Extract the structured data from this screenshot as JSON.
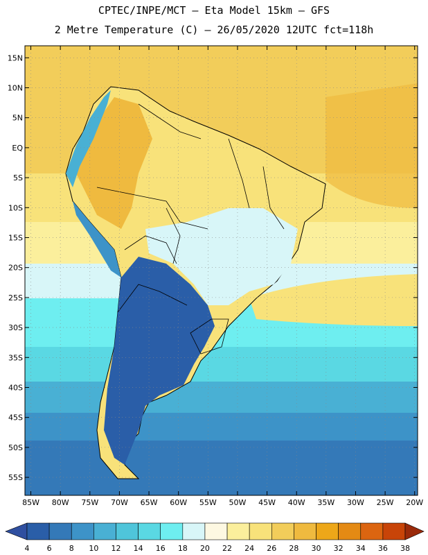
{
  "header": {
    "line1": "CPTEC/INPE/MCT –  Eta Model 15km – GFS",
    "line2": "2 Metre Temperature (C) – 26/05/2020 12UTC fct=118h"
  },
  "map": {
    "lat_labels": [
      "15N",
      "10N",
      "5N",
      "EQ",
      "5S",
      "10S",
      "15S",
      "20S",
      "25S",
      "30S",
      "35S",
      "40S",
      "45S",
      "50S",
      "55S"
    ],
    "lon_labels": [
      "85W",
      "80W",
      "75W",
      "70W",
      "65W",
      "60W",
      "55W",
      "50W",
      "45W",
      "40W",
      "35W",
      "30W",
      "25W",
      "20W"
    ],
    "extent": {
      "west": -86,
      "east": -19.5,
      "north": 17,
      "south": -58
    }
  },
  "legend": {
    "values": [
      "4",
      "6",
      "8",
      "10",
      "12",
      "14",
      "16",
      "18",
      "20",
      "22",
      "24",
      "26",
      "28",
      "30",
      "32",
      "34",
      "36",
      "38"
    ],
    "colors": [
      "#2a5ea8",
      "#3479b8",
      "#3d93c8",
      "#49b0d4",
      "#4fc5da",
      "#5ad8e3",
      "#6eeef0",
      "#d8f6f8",
      "#fdf8e2",
      "#fbef9c",
      "#f8e27a",
      "#f2cd5a",
      "#efba3f",
      "#eda719",
      "#e48a14",
      "#dc6510",
      "#c84408",
      "#a8300a"
    ],
    "under_color": "#2f4fa0",
    "over_color": "#9a2a0a"
  }
}
